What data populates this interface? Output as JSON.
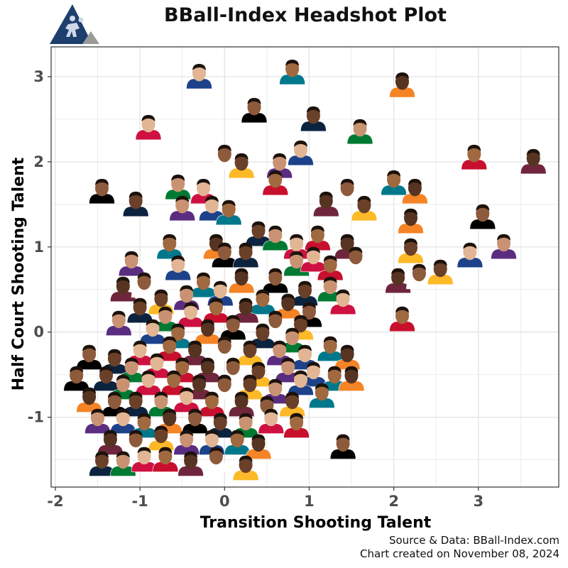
{
  "chart_data": {
    "type": "scatter",
    "title": "BBall-Index Headshot Plot",
    "xlabel": "Transition Shooting Talent",
    "ylabel": "Half Court Shooting Talent",
    "xlim": [
      -2.05,
      3.95
    ],
    "ylim": [
      -1.82,
      3.35
    ],
    "xticks": [
      -2,
      -1,
      0,
      1,
      2,
      3
    ],
    "yticks": [
      -1,
      0,
      1,
      2,
      3
    ],
    "xtick_labels": [
      "-2",
      "-1",
      "0",
      "1",
      "2",
      "3"
    ],
    "ytick_labels": [
      "-1",
      "0",
      "1",
      "2",
      "3"
    ],
    "grid": true,
    "marker": "player-headshot",
    "points": [
      [
        -0.3,
        3.0
      ],
      [
        0.8,
        3.05
      ],
      [
        2.1,
        2.9
      ],
      [
        0.35,
        2.6
      ],
      [
        1.05,
        2.5
      ],
      [
        1.6,
        2.35
      ],
      [
        -0.9,
        2.4
      ],
      [
        2.95,
        2.05
      ],
      [
        3.65,
        2.0
      ],
      [
        0.0,
        2.05
      ],
      [
        0.2,
        1.95
      ],
      [
        0.65,
        1.95
      ],
      [
        0.9,
        2.1
      ],
      [
        2.0,
        1.75
      ],
      [
        2.25,
        1.65
      ],
      [
        -1.45,
        1.65
      ],
      [
        -1.05,
        1.5
      ],
      [
        -0.55,
        1.7
      ],
      [
        -0.25,
        1.65
      ],
      [
        0.6,
        1.75
      ],
      [
        1.2,
        1.5
      ],
      [
        1.45,
        1.65
      ],
      [
        1.65,
        1.45
      ],
      [
        -0.5,
        1.45
      ],
      [
        -0.15,
        1.45
      ],
      [
        0.05,
        1.4
      ],
      [
        2.2,
        1.3
      ],
      [
        3.05,
        1.35
      ],
      [
        0.4,
        1.15
      ],
      [
        0.6,
        1.1
      ],
      [
        0.85,
        1.0
      ],
      [
        1.1,
        1.1
      ],
      [
        1.45,
        1.0
      ],
      [
        1.55,
        0.85
      ],
      [
        2.2,
        0.95
      ],
      [
        3.3,
        1.0
      ],
      [
        2.9,
        0.9
      ],
      [
        -0.65,
        1.0
      ],
      [
        -0.1,
        1.0
      ],
      [
        0.0,
        0.9
      ],
      [
        0.25,
        0.9
      ],
      [
        0.85,
        0.8
      ],
      [
        1.05,
        0.85
      ],
      [
        1.25,
        0.75
      ],
      [
        2.05,
        0.6
      ],
      [
        2.3,
        0.65
      ],
      [
        2.55,
        0.7
      ],
      [
        -1.1,
        0.8
      ],
      [
        -0.55,
        0.75
      ],
      [
        -0.25,
        0.55
      ],
      [
        0.2,
        0.6
      ],
      [
        0.6,
        0.6
      ],
      [
        0.95,
        0.45
      ],
      [
        1.25,
        0.5
      ],
      [
        1.4,
        0.35
      ],
      [
        2.1,
        0.15
      ],
      [
        -1.2,
        0.5
      ],
      [
        -0.95,
        0.55
      ],
      [
        -0.75,
        0.35
      ],
      [
        -0.45,
        0.4
      ],
      [
        -0.05,
        0.45
      ],
      [
        0.45,
        0.35
      ],
      [
        0.75,
        0.3
      ],
      [
        1.0,
        0.2
      ],
      [
        -1.0,
        0.25
      ],
      [
        -0.7,
        0.15
      ],
      [
        -0.4,
        0.2
      ],
      [
        -0.1,
        0.25
      ],
      [
        0.25,
        0.25
      ],
      [
        0.6,
        0.1
      ],
      [
        0.9,
        0.05
      ],
      [
        -1.25,
        0.1
      ],
      [
        -0.85,
        0.0
      ],
      [
        -0.55,
        -0.05
      ],
      [
        -0.2,
        0.0
      ],
      [
        0.1,
        0.05
      ],
      [
        0.45,
        -0.05
      ],
      [
        0.8,
        -0.1
      ],
      [
        -1.0,
        -0.25
      ],
      [
        -0.65,
        -0.2
      ],
      [
        -0.35,
        -0.25
      ],
      [
        0.0,
        -0.2
      ],
      [
        0.3,
        -0.25
      ],
      [
        0.65,
        -0.25
      ],
      [
        0.95,
        -0.3
      ],
      [
        1.25,
        -0.2
      ],
      [
        1.45,
        -0.3
      ],
      [
        -1.6,
        -0.3
      ],
      [
        -1.3,
        -0.35
      ],
      [
        -1.1,
        -0.45
      ],
      [
        -0.8,
        -0.4
      ],
      [
        -0.5,
        -0.45
      ],
      [
        -0.2,
        -0.45
      ],
      [
        0.1,
        -0.45
      ],
      [
        0.4,
        -0.5
      ],
      [
        0.75,
        -0.45
      ],
      [
        1.05,
        -0.5
      ],
      [
        1.3,
        -0.55
      ],
      [
        1.5,
        -0.55
      ],
      [
        -1.75,
        -0.55
      ],
      [
        -1.4,
        -0.55
      ],
      [
        -1.2,
        -0.65
      ],
      [
        -0.9,
        -0.6
      ],
      [
        -0.6,
        -0.6
      ],
      [
        -0.3,
        -0.65
      ],
      [
        0.0,
        -0.65
      ],
      [
        0.3,
        -0.65
      ],
      [
        0.6,
        -0.7
      ],
      [
        0.9,
        -0.6
      ],
      [
        1.15,
        -0.75
      ],
      [
        -1.6,
        -0.8
      ],
      [
        -1.3,
        -0.85
      ],
      [
        -1.05,
        -0.85
      ],
      [
        -0.75,
        -0.85
      ],
      [
        -0.45,
        -0.8
      ],
      [
        -0.15,
        -0.85
      ],
      [
        0.2,
        -0.85
      ],
      [
        0.5,
        -0.9
      ],
      [
        0.8,
        -0.85
      ],
      [
        -1.5,
        -1.05
      ],
      [
        -1.2,
        -1.05
      ],
      [
        -0.95,
        -1.1
      ],
      [
        -0.65,
        -1.05
      ],
      [
        -0.35,
        -1.05
      ],
      [
        -0.05,
        -1.1
      ],
      [
        0.25,
        -1.1
      ],
      [
        0.55,
        -1.05
      ],
      [
        0.85,
        -1.1
      ],
      [
        -1.35,
        -1.3
      ],
      [
        -1.05,
        -1.3
      ],
      [
        -0.75,
        -1.25
      ],
      [
        -0.45,
        -1.3
      ],
      [
        -0.15,
        -1.3
      ],
      [
        0.15,
        -1.3
      ],
      [
        0.4,
        -1.35
      ],
      [
        1.4,
        -1.35
      ],
      [
        -1.45,
        -1.55
      ],
      [
        -1.2,
        -1.55
      ],
      [
        -0.95,
        -1.5
      ],
      [
        -0.7,
        -1.5
      ],
      [
        -0.4,
        -1.55
      ],
      [
        -0.1,
        -1.5
      ],
      [
        0.25,
        -1.6
      ]
    ]
  },
  "caption": {
    "line1": "Source & Data: BBall-Index.com",
    "line2": "Chart created on November 08, 2024"
  },
  "colors": {
    "panel_border": "#333333",
    "grid": "#e5e5e5",
    "logo_navy": "#1e3f6e",
    "logo_grey": "#9a9a9a",
    "skin_tones": [
      "#8d5a3b",
      "#6b4028",
      "#c99272",
      "#e2b594",
      "#a0693f",
      "#573322"
    ],
    "jersey_colors": [
      "#c8102e",
      "#1d428a",
      "#007a33",
      "#fdb927",
      "#000000",
      "#6f263d",
      "#00788c",
      "#ce1141",
      "#5a2d81",
      "#0c2340",
      "#ffffff",
      "#f58426"
    ]
  }
}
